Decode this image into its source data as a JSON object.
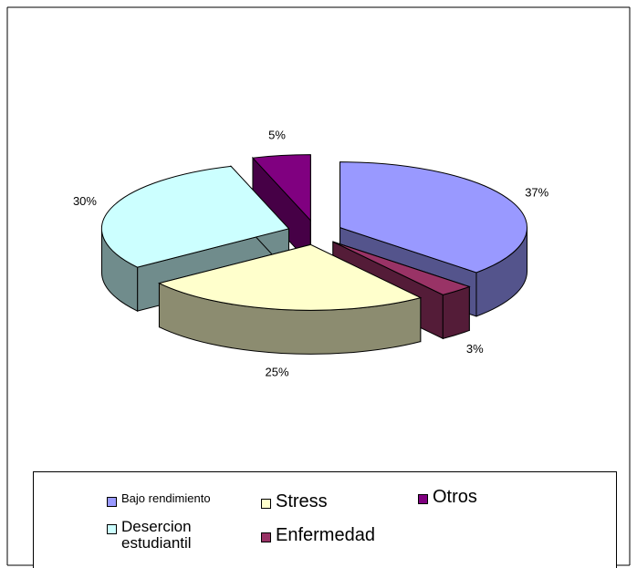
{
  "chart_data": {
    "type": "pie",
    "categories": [
      "Bajo rendimiento",
      "Stress",
      "Otros",
      "Desercion estudiantil",
      "Enfermedad"
    ],
    "values": [
      37,
      25,
      5,
      30,
      3
    ],
    "value_labels": [
      "37%",
      "25%",
      "5%",
      "30%",
      "3%"
    ],
    "colors": [
      "#9999ff",
      "#ffffcc",
      "#800080",
      "#ccffff",
      "#993366"
    ],
    "legend": "bottom"
  }
}
